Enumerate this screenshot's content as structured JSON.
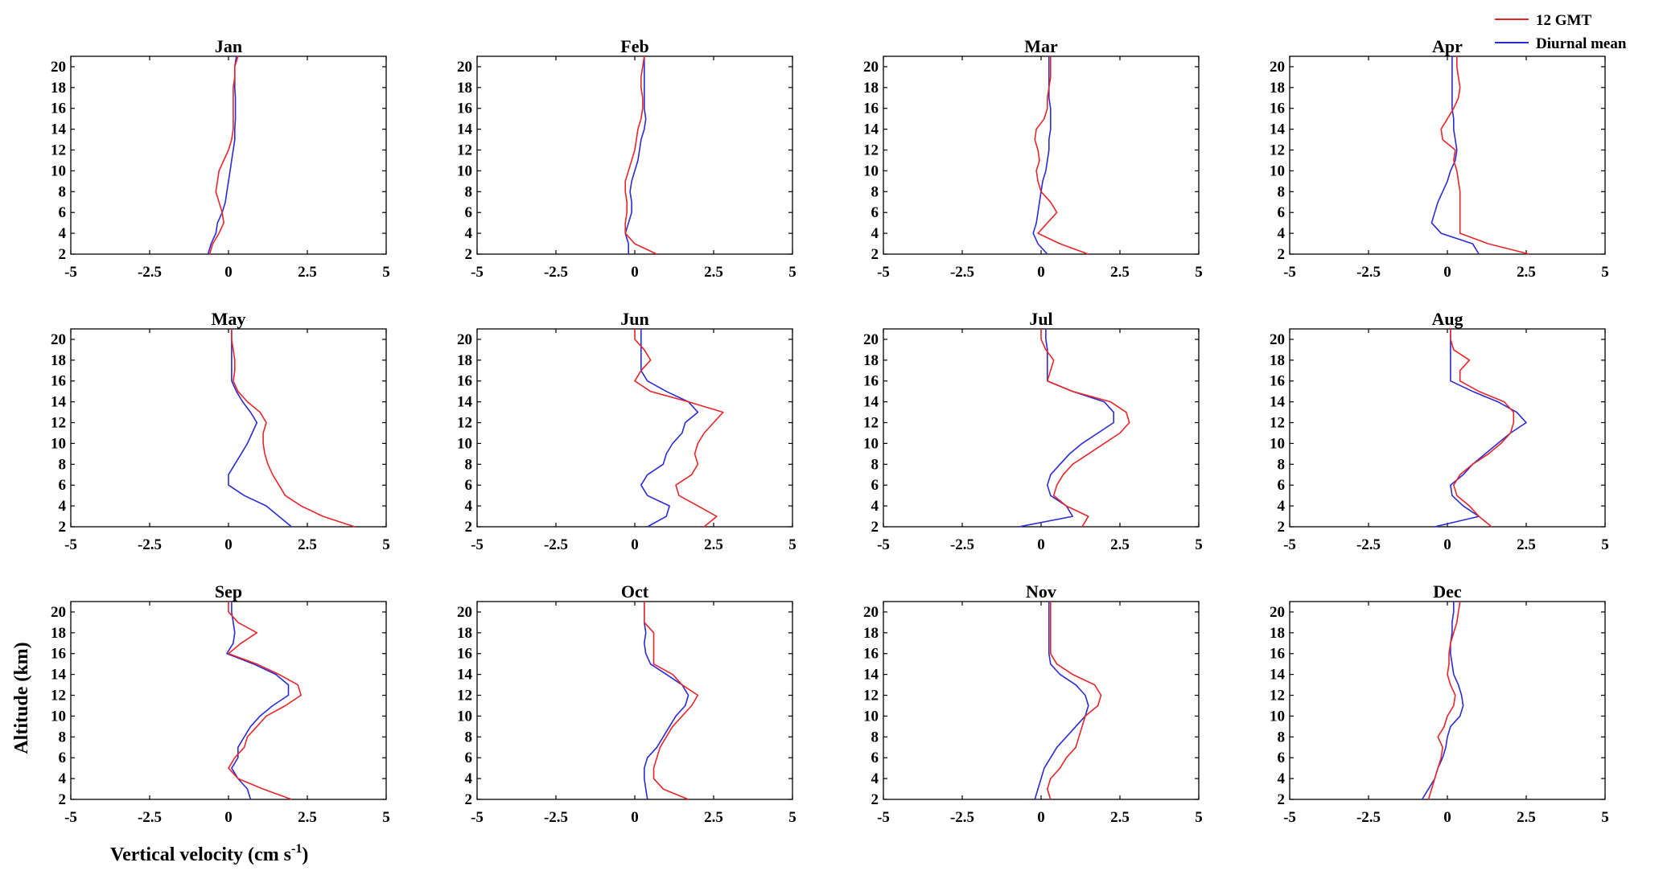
{
  "figure": {
    "xlabel": "Vertical velocity (cm s",
    "xlabel_sup": "-1",
    "xlabel_close": ")",
    "ylabel": "Altitude (km)"
  },
  "legend": {
    "location": "top-right",
    "entries": [
      {
        "label": "12 GMT",
        "color": "#e8262a"
      },
      {
        "label": "Diurnal mean",
        "color": "#2b2bd6"
      }
    ]
  },
  "colors": {
    "gmt12": "#e8262a",
    "mean": "#2b2bd6",
    "axis": "#000000"
  },
  "chart_data": {
    "type": "line",
    "layout": "4x3 small multiples",
    "xlim": [
      -5,
      5
    ],
    "ylim": [
      2,
      21
    ],
    "xticks": [
      -5,
      -2.5,
      0,
      2.5,
      5
    ],
    "xtick_labels": [
      "-5",
      "-2.5",
      "0",
      "2.5",
      "5"
    ],
    "yticks": [
      2,
      4,
      6,
      8,
      10,
      12,
      14,
      16,
      18,
      20
    ],
    "ytick_labels": [
      "2",
      "4",
      "6",
      "8",
      "10",
      "12",
      "14",
      "16",
      "18",
      "20"
    ],
    "altitude_km": [
      2,
      3,
      4,
      5,
      6,
      7,
      8,
      9,
      10,
      11,
      12,
      13,
      14,
      15,
      16,
      17,
      18,
      19,
      20,
      21
    ],
    "panels": [
      {
        "title": "Jan",
        "gmt12": [
          -0.6,
          -0.5,
          -0.3,
          -0.15,
          -0.2,
          -0.3,
          -0.4,
          -0.35,
          -0.3,
          -0.15,
          0.0,
          0.1,
          0.15,
          0.15,
          0.15,
          0.15,
          0.15,
          0.2,
          0.2,
          0.3
        ],
        "mean": [
          -0.65,
          -0.55,
          -0.4,
          -0.35,
          -0.2,
          -0.1,
          -0.05,
          0.0,
          0.05,
          0.1,
          0.15,
          0.2,
          0.2,
          0.22,
          0.22,
          0.22,
          0.2,
          0.2,
          0.2,
          0.25
        ]
      },
      {
        "title": "Feb",
        "gmt12": [
          0.7,
          0.0,
          -0.3,
          -0.3,
          -0.25,
          -0.25,
          -0.3,
          -0.3,
          -0.2,
          -0.1,
          0.0,
          0.05,
          0.1,
          0.2,
          0.25,
          0.25,
          0.2,
          0.2,
          0.25,
          0.3
        ],
        "mean": [
          -0.2,
          -0.2,
          -0.3,
          -0.2,
          -0.1,
          -0.1,
          -0.15,
          -0.1,
          0.0,
          0.1,
          0.15,
          0.2,
          0.3,
          0.35,
          0.3,
          0.3,
          0.3,
          0.3,
          0.3,
          0.3
        ],
        "mean_pre": []
      },
      {
        "title": "Mar",
        "gmt12": [
          1.5,
          0.6,
          -0.1,
          0.2,
          0.5,
          0.3,
          0.0,
          -0.1,
          -0.15,
          -0.05,
          -0.1,
          -0.2,
          -0.15,
          0.1,
          0.2,
          0.2,
          0.25,
          0.3,
          0.3,
          0.3
        ],
        "mean": [
          0.2,
          -0.1,
          -0.25,
          -0.15,
          -0.1,
          -0.05,
          0.0,
          0.05,
          0.15,
          0.2,
          0.25,
          0.25,
          0.3,
          0.3,
          0.3,
          0.25,
          0.25,
          0.25,
          0.25,
          0.25
        ]
      },
      {
        "title": "Apr",
        "gmt12": [
          2.6,
          1.3,
          0.4,
          0.4,
          0.4,
          0.4,
          0.4,
          0.35,
          0.3,
          0.2,
          0.25,
          -0.15,
          -0.2,
          0.0,
          0.2,
          0.35,
          0.4,
          0.35,
          0.3,
          0.3
        ],
        "mean": [
          1.0,
          0.8,
          -0.2,
          -0.5,
          -0.4,
          -0.3,
          -0.15,
          0.0,
          0.1,
          0.25,
          0.3,
          0.25,
          0.2,
          0.2,
          0.15,
          0.15,
          0.15,
          0.15,
          0.15,
          0.15
        ]
      },
      {
        "title": "May",
        "gmt12": [
          4.0,
          3.0,
          2.3,
          1.8,
          1.6,
          1.4,
          1.25,
          1.15,
          1.1,
          1.1,
          1.2,
          1.0,
          0.6,
          0.3,
          0.15,
          0.2,
          0.2,
          0.15,
          0.1,
          0.1
        ],
        "mean": [
          2.0,
          1.6,
          1.2,
          0.5,
          0.0,
          0.0,
          0.2,
          0.4,
          0.6,
          0.75,
          0.9,
          0.7,
          0.45,
          0.25,
          0.1,
          0.1,
          0.1,
          0.1,
          0.1,
          0.1
        ]
      },
      {
        "title": "Jun",
        "gmt12": [
          2.2,
          2.6,
          2.0,
          1.4,
          1.3,
          1.8,
          2.0,
          1.9,
          2.0,
          2.2,
          2.5,
          2.8,
          1.7,
          0.5,
          0.0,
          0.2,
          0.5,
          0.3,
          0.0,
          0.0
        ],
        "mean": [
          0.4,
          1.0,
          1.1,
          0.4,
          0.2,
          0.4,
          0.9,
          1.0,
          1.2,
          1.5,
          1.6,
          2.0,
          1.7,
          1.0,
          0.4,
          0.2,
          0.2,
          0.2,
          0.2,
          0.2
        ]
      },
      {
        "title": "Jul",
        "gmt12": [
          1.3,
          1.5,
          0.8,
          0.4,
          0.5,
          0.7,
          1.0,
          1.5,
          2.0,
          2.5,
          2.8,
          2.7,
          2.2,
          1.0,
          0.2,
          0.3,
          0.4,
          0.15,
          0.0,
          0.0
        ],
        "mean": [
          -0.7,
          1.0,
          0.8,
          0.3,
          0.2,
          0.3,
          0.6,
          0.9,
          1.3,
          1.8,
          2.3,
          2.3,
          2.0,
          1.0,
          0.2,
          0.2,
          0.2,
          0.2,
          0.15,
          0.15
        ],
        "mean_note": ""
      },
      {
        "title": "Aug",
        "gmt12": [
          1.4,
          1.0,
          0.7,
          0.3,
          0.2,
          0.4,
          0.8,
          1.3,
          1.7,
          2.0,
          2.1,
          2.1,
          1.8,
          1.0,
          0.4,
          0.4,
          0.7,
          0.2,
          0.1,
          0.1
        ],
        "mean": [
          -0.4,
          1.0,
          0.5,
          0.15,
          0.1,
          0.5,
          0.8,
          1.2,
          1.6,
          2.0,
          2.5,
          2.2,
          1.6,
          0.8,
          0.1,
          0.1,
          0.1,
          0.1,
          0.1,
          0.1
        ]
      },
      {
        "title": "Sep",
        "gmt12": [
          2.0,
          1.1,
          0.3,
          0.0,
          0.2,
          0.5,
          0.6,
          0.9,
          1.2,
          1.8,
          2.3,
          2.2,
          1.6,
          0.9,
          0.0,
          0.4,
          0.9,
          0.3,
          0.0,
          0.0
        ],
        "mean": [
          0.7,
          0.6,
          0.3,
          0.1,
          0.3,
          0.3,
          0.5,
          0.7,
          1.0,
          1.4,
          1.9,
          1.9,
          1.5,
          0.8,
          -0.05,
          0.15,
          0.2,
          0.15,
          0.1,
          0.1
        ]
      },
      {
        "title": "Oct",
        "gmt12": [
          1.7,
          0.9,
          0.6,
          0.6,
          0.7,
          0.8,
          1.0,
          1.2,
          1.5,
          1.8,
          2.0,
          1.5,
          1.2,
          0.6,
          0.6,
          0.6,
          0.6,
          0.3,
          0.3,
          0.3
        ],
        "mean": [
          0.4,
          0.35,
          0.3,
          0.3,
          0.4,
          0.7,
          0.9,
          1.1,
          1.3,
          1.6,
          1.7,
          1.5,
          1.0,
          0.5,
          0.35,
          0.3,
          0.35,
          0.3,
          0.3,
          0.3
        ]
      },
      {
        "title": "Nov",
        "gmt12": [
          0.3,
          0.2,
          0.3,
          0.6,
          0.8,
          1.1,
          1.2,
          1.3,
          1.4,
          1.8,
          1.9,
          1.7,
          1.0,
          0.5,
          0.3,
          0.3,
          0.3,
          0.3,
          0.3,
          0.3
        ],
        "mean": [
          -0.2,
          -0.1,
          0.0,
          0.1,
          0.3,
          0.5,
          0.8,
          1.1,
          1.4,
          1.5,
          1.4,
          1.1,
          0.6,
          0.3,
          0.25,
          0.25,
          0.25,
          0.25,
          0.25,
          0.25
        ],
        "mean_pre": []
      },
      {
        "title": "Dec",
        "gmt12": [
          -0.6,
          -0.5,
          -0.4,
          -0.3,
          -0.2,
          -0.15,
          -0.3,
          -0.1,
          0.0,
          0.2,
          0.25,
          0.1,
          0.0,
          0.05,
          0.05,
          0.1,
          0.2,
          0.3,
          0.35,
          0.4
        ],
        "mean": [
          -0.8,
          -0.6,
          -0.4,
          -0.3,
          -0.15,
          -0.05,
          0.0,
          0.1,
          0.4,
          0.5,
          0.45,
          0.35,
          0.2,
          0.15,
          0.1,
          0.1,
          0.15,
          0.15,
          0.2,
          0.2
        ]
      }
    ]
  }
}
